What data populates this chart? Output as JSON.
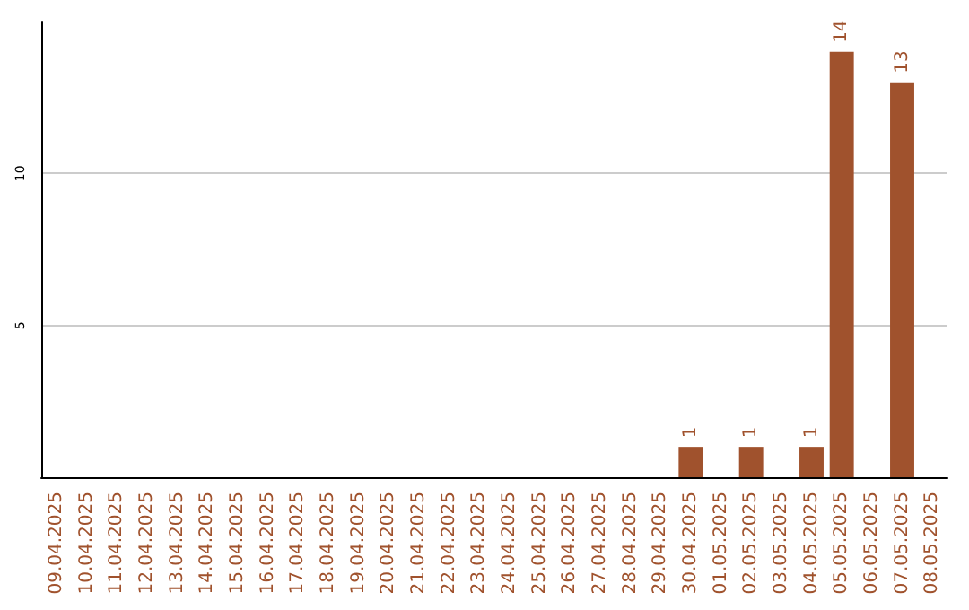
{
  "chart_data": {
    "type": "bar",
    "categories": [
      "09.04.2025",
      "10.04.2025",
      "11.04.2025",
      "12.04.2025",
      "13.04.2025",
      "14.04.2025",
      "15.04.2025",
      "16.04.2025",
      "17.04.2025",
      "18.04.2025",
      "19.04.2025",
      "20.04.2025",
      "21.04.2025",
      "22.04.2025",
      "23.04.2025",
      "24.04.2025",
      "25.04.2025",
      "26.04.2025",
      "27.04.2025",
      "28.04.2025",
      "29.04.2025",
      "30.04.2025",
      "01.05.2025",
      "02.05.2025",
      "03.05.2025",
      "04.05.2025",
      "05.05.2025",
      "06.05.2025",
      "07.05.2025",
      "08.05.2025"
    ],
    "values": [
      0,
      0,
      0,
      0,
      0,
      0,
      0,
      0,
      0,
      0,
      0,
      0,
      0,
      0,
      0,
      0,
      0,
      0,
      0,
      0,
      0,
      1,
      0,
      1,
      0,
      1,
      14,
      0,
      13,
      0
    ],
    "value_labels": [
      null,
      null,
      null,
      null,
      null,
      null,
      null,
      null,
      null,
      null,
      null,
      null,
      null,
      null,
      null,
      null,
      null,
      null,
      null,
      null,
      null,
      "1",
      null,
      "1",
      null,
      "1",
      "14",
      null,
      "13",
      null
    ],
    "color": "#a0522d",
    "ylim": [
      0,
      15
    ],
    "yticks": [
      5,
      10
    ],
    "grid": "y"
  }
}
